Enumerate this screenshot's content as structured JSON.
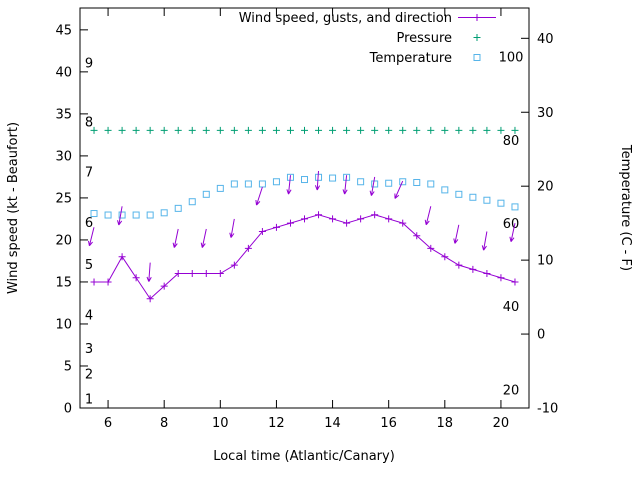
{
  "chart_data": {
    "type": "line",
    "title": "",
    "xlabel": "Local time (Atlantic/Canary)",
    "ylabel_left": "Wind speed (kt - Beaufort)",
    "ylabel_right": "Temperature (C - F)",
    "grid": false,
    "legend_position": "top-right-inside",
    "x_axis": {
      "min": 5,
      "max": 21,
      "ticks": [
        6,
        8,
        10,
        12,
        14,
        16,
        18,
        20
      ]
    },
    "left_axis": {
      "min": 0,
      "max": 47.6,
      "ticks": [
        0,
        5,
        10,
        15,
        20,
        25,
        30,
        35,
        40,
        45
      ]
    },
    "right_axis": {
      "min": -10,
      "max": 44.1,
      "ticks": [
        -10,
        0,
        10,
        20,
        30,
        40
      ]
    },
    "beaufort_scale": [
      {
        "label": "1",
        "kt": 1
      },
      {
        "label": "2",
        "kt": 4
      },
      {
        "label": "3",
        "kt": 7
      },
      {
        "label": "4",
        "kt": 11
      },
      {
        "label": "5",
        "kt": 17
      },
      {
        "label": "6",
        "kt": 22
      },
      {
        "label": "7",
        "kt": 28
      },
      {
        "label": "8",
        "kt": 34
      },
      {
        "label": "9",
        "kt": 41
      }
    ],
    "inner_right_scale": {
      "labels": [
        20,
        40,
        60,
        80,
        100
      ],
      "kt_at_20": 2.1,
      "kt_at_100": 41.7
    },
    "x": [
      5.5,
      6,
      6.5,
      7,
      7.5,
      8,
      8.5,
      9,
      9.5,
      10,
      10.5,
      11,
      11.5,
      12,
      12.5,
      13,
      13.5,
      14,
      14.5,
      15,
      15.5,
      16,
      16.5,
      17,
      17.5,
      18,
      18.5,
      19,
      19.5,
      20,
      20.5
    ],
    "series": [
      {
        "name": "Wind speed, gusts, and direction",
        "color": "#9400d3",
        "marker": "plus",
        "line": true,
        "axis": "left",
        "values": [
          15,
          15,
          18,
          15.5,
          13,
          14.5,
          16,
          16,
          16,
          16,
          17,
          19,
          21,
          21.5,
          22,
          22.5,
          23,
          22.5,
          22,
          22.5,
          23,
          22.5,
          22,
          20.5,
          19,
          18,
          17,
          16.5,
          16,
          15.5,
          15
        ]
      },
      {
        "name": "Pressure",
        "color": "#009e73",
        "marker": "plus",
        "line": false,
        "axis": "inner",
        "values": [
          82.5,
          82.5,
          82.5,
          82.5,
          82.5,
          82.5,
          82.5,
          82.5,
          82.5,
          82.5,
          82.5,
          82.5,
          82.5,
          82.5,
          82.5,
          82.5,
          82.5,
          82.5,
          82.5,
          82.5,
          82.5,
          82.5,
          82.5,
          82.5,
          82.5,
          82.5,
          82.5,
          82.5,
          82.5,
          82.5,
          82.5
        ]
      },
      {
        "name": "Temperature",
        "color": "#56b4e9",
        "marker": "square",
        "line": false,
        "axis": "right",
        "values": [
          16.3,
          16.1,
          16.1,
          16.1,
          16.1,
          16.4,
          17.0,
          17.9,
          18.9,
          19.7,
          20.3,
          20.3,
          20.3,
          20.6,
          21.2,
          20.9,
          21.2,
          21.1,
          21.2,
          20.6,
          20.3,
          20.4,
          20.6,
          20.5,
          20.3,
          19.5,
          18.9,
          18.5,
          18.1,
          17.7,
          17.2
        ]
      }
    ],
    "gust_arrows": {
      "color": "#9400d3",
      "points": [
        {
          "x": 5.5,
          "kt": 21.5,
          "tilt": 14
        },
        {
          "x": 6.5,
          "kt": 24.0,
          "tilt": 10
        },
        {
          "x": 7.5,
          "kt": 17.3,
          "tilt": 4
        },
        {
          "x": 8.5,
          "kt": 21.3,
          "tilt": 12
        },
        {
          "x": 9.5,
          "kt": 21.3,
          "tilt": 12
        },
        {
          "x": 10.5,
          "kt": 22.5,
          "tilt": 10
        },
        {
          "x": 11.5,
          "kt": 26.3,
          "tilt": 18
        },
        {
          "x": 12.5,
          "kt": 27.7,
          "tilt": 6
        },
        {
          "x": 13.5,
          "kt": 28.2,
          "tilt": 4
        },
        {
          "x": 14.5,
          "kt": 27.7,
          "tilt": 6
        },
        {
          "x": 15.5,
          "kt": 27.5,
          "tilt": 10
        },
        {
          "x": 16.5,
          "kt": 27.0,
          "tilt": 24
        },
        {
          "x": 17.5,
          "kt": 24.0,
          "tilt": 14
        },
        {
          "x": 18.5,
          "kt": 21.8,
          "tilt": 12
        },
        {
          "x": 19.5,
          "kt": 21.0,
          "tilt": 10
        },
        {
          "x": 20.5,
          "kt": 22.0,
          "tilt": 12
        }
      ]
    }
  }
}
